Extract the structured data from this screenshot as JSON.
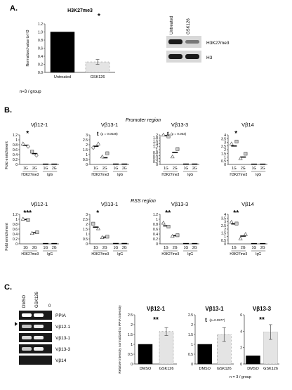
{
  "panel_letters": {
    "a": "A.",
    "b": "B.",
    "c": "C."
  },
  "panel_a": {
    "n_note": "n=3 / group",
    "blot_labels": [
      "Untreated",
      "GSK126"
    ],
    "bands": [
      "H3K27me3",
      "H3"
    ]
  },
  "panel_b": {
    "promoter_title": "Promoter region",
    "rss_title": "RSS region",
    "ylabel": "Fold enrichment",
    "xticks": [
      "1G",
      "2G",
      "1G",
      "2G"
    ],
    "groups": [
      "H3K27me3",
      "IgG"
    ]
  },
  "panel_c": {
    "gel_lanes": [
      "DMSO",
      "GSK126",
      "0"
    ],
    "gel_bands": [
      "PPIA",
      "Vβ12-1",
      "Vβ13-1",
      "Vβ13-3",
      "Vβ14"
    ],
    "n_note": "n = 3 / group"
  },
  "chart_data": [
    {
      "type": "bar",
      "id": "a",
      "title": "H3K27me3",
      "ylabel": "Normalized value to H3",
      "categories": [
        "Untreated",
        "GSK126"
      ],
      "values": [
        1.0,
        0.26
      ],
      "errors": [
        0,
        0.06
      ],
      "ylim": [
        0,
        1.2
      ],
      "yticks": [
        "0.0",
        "0.2",
        "0.4",
        "0.6",
        "0.8",
        "1.0",
        "1.2"
      ],
      "annotation": "*"
    },
    {
      "type": "scatter",
      "id": "p1",
      "title": "Vβ12-1",
      "ylim": [
        0,
        1.2
      ],
      "yticks": [
        "0",
        "0.2",
        "0.4",
        "0.6",
        "0.8",
        "1",
        "1.2"
      ],
      "means": [
        0.78,
        0.44,
        0.01,
        0.01
      ],
      "annotation": "*"
    },
    {
      "type": "scatter",
      "id": "p2",
      "title": "Vβ13-1",
      "ylim": [
        0,
        3
      ],
      "yticks": [
        "0",
        "0.5",
        "1",
        "1.5",
        "2",
        "2.5",
        "3"
      ],
      "means": [
        1.85,
        0.68,
        0.03,
        0.03
      ],
      "annotation": "t",
      "annotation_p": "(p = 0.0538)"
    },
    {
      "type": "scatter",
      "id": "p3",
      "title": "Vβ13-3",
      "ylim": [
        0,
        2
      ],
      "yticks": [
        "0",
        "0.2",
        "0.4",
        "0.6",
        "0.8",
        "1",
        "1.2",
        "1.4",
        "1.6",
        "1.8",
        "2"
      ],
      "means": [
        1.95,
        0.82,
        0.02,
        0.02
      ],
      "annotation": "t",
      "annotation_p": "(p = 0.063)"
    },
    {
      "type": "scatter",
      "id": "p4",
      "title": "Vβ14",
      "ylim": [
        0,
        4
      ],
      "yticks": [
        "0",
        "0.5",
        "1",
        "1.5",
        "2",
        "2.5",
        "3",
        "3.5",
        "4"
      ],
      "means": [
        2.5,
        1.0,
        0.03,
        0.03
      ],
      "annotation": "*"
    },
    {
      "type": "scatter",
      "id": "r1",
      "title": "Vβ12-1",
      "ylim": [
        0,
        1.2
      ],
      "yticks": [
        "0",
        "0.2",
        "0.4",
        "0.6",
        "0.8",
        "1",
        "1.2"
      ],
      "means": [
        0.99,
        0.45,
        0.01,
        0.01
      ],
      "annotation": "***"
    },
    {
      "type": "scatter",
      "id": "r2",
      "title": "Vβ13-1",
      "ylim": [
        0,
        3
      ],
      "yticks": [
        "0",
        "0.5",
        "1",
        "1.5",
        "2",
        "2.5",
        "3"
      ],
      "means": [
        1.7,
        0.68,
        0.03,
        0.03
      ],
      "annotation": "*"
    },
    {
      "type": "scatter",
      "id": "r3",
      "title": "Vβ13-3",
      "ylim": [
        0,
        1.2
      ],
      "yticks": [
        "0",
        "0.2",
        "0.4",
        "0.6",
        "0.8",
        "1",
        "1.2"
      ],
      "means": [
        0.73,
        0.33,
        0.01,
        0.01
      ],
      "annotation": "**"
    },
    {
      "type": "scatter",
      "id": "r4",
      "title": "Vβ14",
      "ylim": [
        0,
        4
      ],
      "yticks": [
        "0",
        "0.5",
        "1",
        "1.5",
        "2",
        "2.5",
        "3",
        "3.5",
        "4"
      ],
      "means": [
        2.7,
        1.05,
        0.03,
        0.03
      ],
      "annotation": "**"
    },
    {
      "type": "bar",
      "id": "c1",
      "title": "Vβ12-1",
      "ylabel": "Relative intensity normalized to PPIA intensity",
      "categories": [
        "DMSO",
        "GSK126"
      ],
      "values": [
        1.0,
        1.65
      ],
      "errors": [
        0,
        0.2
      ],
      "ylim": [
        0,
        2.5
      ],
      "yticks": [
        "0",
        "0.5",
        "1",
        "1.5",
        "2",
        "2.5"
      ],
      "annotation": "**"
    },
    {
      "type": "bar",
      "id": "c2",
      "title": "Vβ13-1",
      "categories": [
        "DMSO",
        "GSK126"
      ],
      "values": [
        1.0,
        1.5
      ],
      "errors": [
        0,
        0.35
      ],
      "ylim": [
        0,
        2.5
      ],
      "yticks": [
        "0",
        "0.5",
        "1",
        "1.5",
        "2",
        "2.5"
      ],
      "annotation": "t",
      "annotation_p": "(p=0.0577)"
    },
    {
      "type": "bar",
      "id": "c3",
      "title": "Vβ13-3",
      "categories": [
        "DMSO",
        "GSK126"
      ],
      "values": [
        1.0,
        3.9
      ],
      "errors": [
        0,
        0.9
      ],
      "ylim": [
        0,
        6
      ],
      "yticks": [
        "0",
        "2",
        "4",
        "6"
      ],
      "annotation": "**"
    }
  ]
}
